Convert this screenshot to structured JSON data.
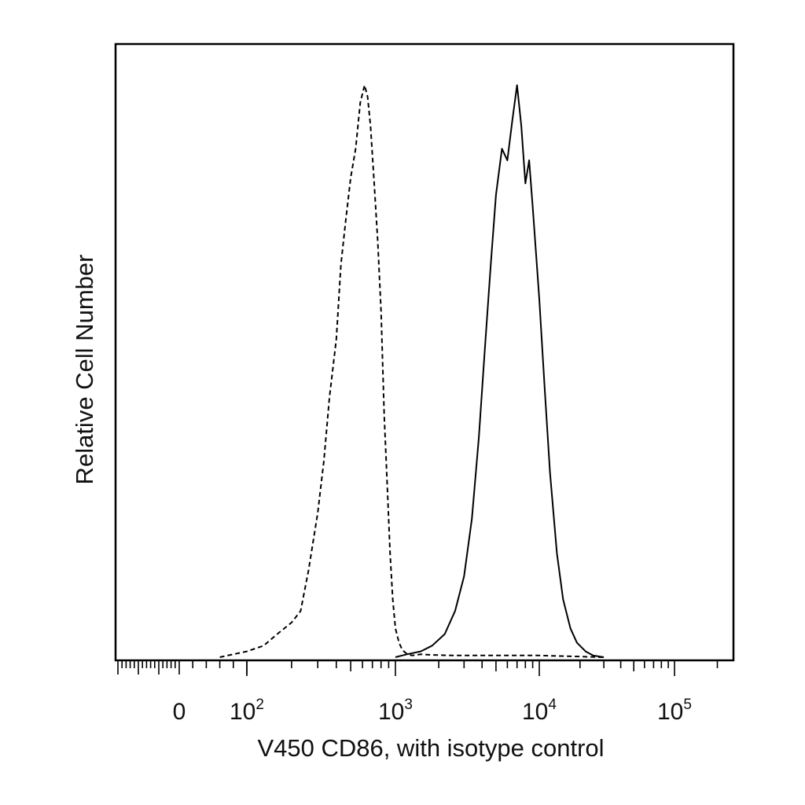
{
  "chart_data": {
    "type": "line",
    "title": "",
    "xlabel": "V450 CD86, with isotype control",
    "ylabel": "Relative Cell Number",
    "x_scale": "biexponential",
    "xlim": [
      -300,
      250000
    ],
    "ylim": [
      0,
      100
    ],
    "grid": false,
    "legend": "none",
    "x_ticks": [
      {
        "label": "0",
        "value": 0
      },
      {
        "label": "10",
        "exp": "2",
        "value": 100
      },
      {
        "label": "10",
        "exp": "3",
        "value": 1000
      },
      {
        "label": "10",
        "exp": "4",
        "value": 10000
      },
      {
        "label": "10",
        "exp": "5",
        "value": 100000
      }
    ],
    "series": [
      {
        "style": "dashed",
        "x": [
          60,
          80,
          100,
          130,
          160,
          200,
          230,
          260,
          300,
          330,
          360,
          400,
          430,
          460,
          500,
          540,
          580,
          620,
          650,
          680,
          720,
          760,
          800,
          840,
          880,
          920,
          960,
          1000,
          1060,
          1120,
          1200,
          1300,
          1500,
          1800,
          2500,
          5000,
          10000,
          30000
        ],
        "y": [
          0,
          0.5,
          1,
          2,
          4,
          6,
          8,
          15,
          25,
          34,
          45,
          55,
          68,
          75,
          83,
          88,
          96,
          99,
          97,
          92,
          82,
          72,
          60,
          42,
          30,
          18,
          10,
          5,
          2.5,
          1.2,
          0.6,
          0.3,
          0.5,
          0.4,
          0.3,
          0.3,
          0.3,
          0
        ]
      },
      {
        "style": "solid",
        "x": [
          1000,
          1200,
          1500,
          1800,
          2200,
          2600,
          3000,
          3400,
          3800,
          4200,
          4600,
          5000,
          5500,
          6000,
          6500,
          7000,
          7500,
          8000,
          8500,
          9000,
          10000,
          11000,
          12000,
          13500,
          15000,
          17000,
          19000,
          22000,
          25000,
          30000
        ],
        "y": [
          0,
          0.5,
          1,
          2,
          4,
          8,
          14,
          24,
          38,
          54,
          68,
          80,
          88,
          86,
          93,
          99,
          92,
          82,
          86,
          78,
          62,
          46,
          32,
          18,
          10,
          5,
          2.5,
          1,
          0.3,
          0
        ]
      }
    ]
  }
}
